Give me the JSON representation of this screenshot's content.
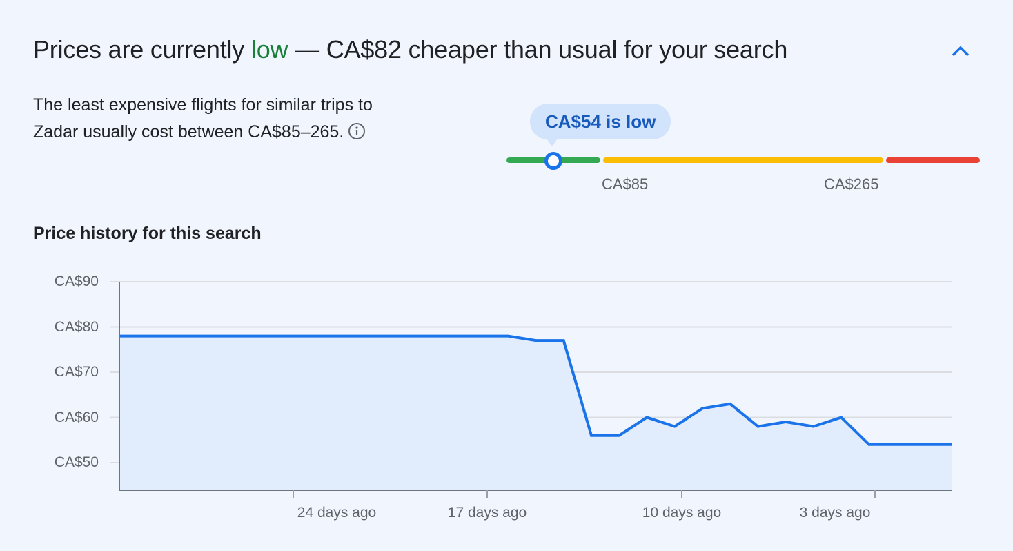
{
  "header": {
    "title_prefix": "Prices are currently ",
    "title_status": "low",
    "title_suffix": " — CA$82 cheaper than usual for your search",
    "collapse_icon": "chevron-up-icon"
  },
  "summary": {
    "description": "The least expensive flights for similar trips to Zadar usually cost between CA$85–265.",
    "info_icon": "info-icon"
  },
  "price_range": {
    "current_label": "CA$54 is low",
    "current_price": 54,
    "low_threshold_label": "CA$85",
    "high_threshold_label": "CA$265",
    "colors": {
      "low": "#34a853",
      "typical": "#fbbc04",
      "high": "#ea4335",
      "marker": "#1a73e8"
    }
  },
  "colors": {
    "accent": "#1a73e8",
    "status_low": "#188038",
    "fill": "#e1ecfc",
    "background": "#f1f6fe"
  },
  "chart_data": {
    "type": "area",
    "title": "Price history for this search",
    "xlabel": "",
    "ylabel": "",
    "ylim": [
      45,
      90
    ],
    "y_ticks": [
      "CA$90",
      "CA$80",
      "CA$70",
      "CA$60",
      "CA$50"
    ],
    "y_tick_values": [
      90,
      80,
      70,
      60,
      50
    ],
    "x_ticks": [
      "24 days ago",
      "17 days ago",
      "10 days ago",
      "3 days ago"
    ],
    "grid": true,
    "legend": "none",
    "series": [
      {
        "name": "Price",
        "days_ago": [
          30,
          16,
          15,
          14,
          13,
          12,
          11,
          10,
          9,
          8,
          7,
          6,
          5,
          4,
          3,
          0
        ],
        "values": [
          78,
          78,
          77,
          77,
          56,
          56,
          60,
          58,
          62,
          63,
          58,
          59,
          58,
          60,
          54,
          54
        ]
      }
    ]
  }
}
